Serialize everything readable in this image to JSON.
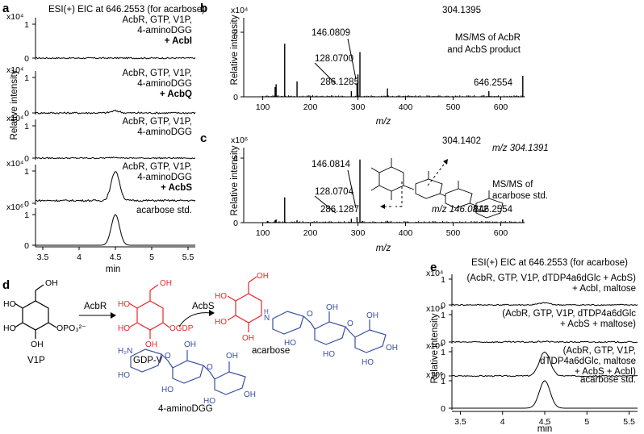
{
  "panels": {
    "a": "a",
    "b": "b",
    "c": "c",
    "d": "d",
    "e": "e"
  },
  "panel_a": {
    "title": "ESI(+) EIC at 646.2553 (for acarbose)",
    "ylabel": "Relative intensity",
    "xlabel": "min",
    "xticks": [
      "3.5",
      "4",
      "4.5",
      "5",
      "5.5"
    ],
    "traces": [
      {
        "scale": "x10⁴",
        "ytop": "1",
        "ybot": "0",
        "lines": [
          "AcbR, GTP, V1P,",
          "4-aminoDGG"
        ],
        "bold": "+ AcbI",
        "peak": 0.0,
        "noise": 0.04
      },
      {
        "scale": "x10⁴",
        "ytop": "1",
        "ybot": "0",
        "lines": [
          "AcbR, GTP, V1P,",
          "4-aminoDGG"
        ],
        "bold": "+ AcbQ",
        "peak": 0.06,
        "noise": 0.05
      },
      {
        "scale": "x10⁴",
        "ytop": "1",
        "ybot": "0",
        "lines": [
          "AcbR, GTP, V1P,",
          "4-aminoDGG"
        ],
        "bold": "",
        "peak": 0.03,
        "noise": 0.04
      },
      {
        "scale": "x10⁴",
        "ytop": "1",
        "ybot": "0",
        "lines": [
          "AcbR, GTP, V1P,",
          "4-aminoDGG"
        ],
        "bold": "+ AcbS",
        "peak": 1.0,
        "noise": 0.06,
        "baseline": 0.08
      },
      {
        "scale": "x10⁶",
        "ytop": "1",
        "ybot": "0",
        "lines": [
          "acarbose std."
        ],
        "bold": "",
        "peak": 1.0,
        "noise": 0.0
      }
    ]
  },
  "panel_b": {
    "scale": "x10⁴",
    "yticks": [
      "2",
      "0"
    ],
    "ylabel": "Relative intensity",
    "xlabel": "m/z",
    "xticks": [
      "100",
      "200",
      "300",
      "400",
      "500",
      "600"
    ],
    "annotation": [
      "MS/MS of AcbR",
      "and AcbS product"
    ],
    "labels": [
      "146.0809",
      "128.0700",
      "286.1285",
      "304.1395",
      "646.2554"
    ]
  },
  "panel_c": {
    "scale": "x10⁶",
    "yticks": [
      "4",
      "0"
    ],
    "ylabel": "Relative intensity",
    "xlabel": "m/z",
    "xticks": [
      "100",
      "200",
      "300",
      "400",
      "500",
      "600"
    ],
    "annotation": [
      "MS/MS of",
      "acarbose std."
    ],
    "labels": [
      "146.0814",
      "128.0704",
      "286.1287",
      "304.1402",
      "646.2554"
    ],
    "frag_labels": [
      "m/z 304.1391",
      "m/z 146.0812"
    ]
  },
  "panel_d": {
    "V1P": "V1P",
    "GDPV": "GDP-V",
    "AcbR": "AcbR",
    "AcbS": "AcbS",
    "acarbose": "acarbose",
    "aminoDGG": "4-aminoDGG",
    "OPO3": "OPO₃²⁻",
    "OGDP": "OGDP"
  },
  "panel_e": {
    "title": "ESI(+) EIC at 646.2553 (for acarbose)",
    "ylabel": "Relative intensity",
    "xlabel": "min",
    "xticks": [
      "3.5",
      "4",
      "4.5",
      "5",
      "5.5"
    ],
    "traces": [
      {
        "scale": "x10⁴",
        "ytop": "1",
        "ybot": "0",
        "line1": "(AcbR, GTP, V1P, dTDP4a6dGlc + AcbS)",
        "line2": "+ AcbI, maltose"
      },
      {
        "scale": "x10⁴",
        "ytop": "1",
        "ybot": "0",
        "line1": "(AcbR, GTP, V1P, dTDP4a6dGlc",
        "line2": "+ AcbS + maltose)"
      },
      {
        "scale": "x10⁴",
        "ytop": "1",
        "ybot": "0",
        "line1": "(AcbR, GTP, V1P,",
        "line2": "dTDP4a6dGlc, maltose",
        "line3": "+ AcbS + AcbI)"
      },
      {
        "scale": "x10⁶",
        "ytop": "1",
        "ybot": "0",
        "line1": "acarbose std."
      }
    ]
  },
  "chart_data": [
    {
      "type": "line",
      "title": "ESI(+) EIC at 646.2553 (for acarbose)",
      "xlabel": "min",
      "ylabel": "Relative intensity",
      "xlim": [
        3.4,
        5.6
      ],
      "series": [
        {
          "name": "AcbR, GTP, V1P, 4-aminoDGG + AcbI",
          "peak_x": 4.5,
          "peak_height": 0.0,
          "scale": "x10^4"
        },
        {
          "name": "AcbR, GTP, V1P, 4-aminoDGG + AcbQ",
          "peak_x": 4.5,
          "peak_height": 0.06,
          "scale": "x10^4"
        },
        {
          "name": "AcbR, GTP, V1P, 4-aminoDGG",
          "peak_x": 4.5,
          "peak_height": 0.03,
          "scale": "x10^4"
        },
        {
          "name": "AcbR, GTP, V1P, 4-aminoDGG + AcbS",
          "peak_x": 4.5,
          "peak_height": 1.0,
          "scale": "x10^4"
        },
        {
          "name": "acarbose std.",
          "peak_x": 4.5,
          "peak_height": 1.0,
          "scale": "x10^6"
        }
      ]
    },
    {
      "type": "bar",
      "title": "MS/MS of AcbR and AcbS product",
      "xlabel": "m/z",
      "ylabel": "Relative intensity",
      "xlim": [
        60,
        650
      ],
      "ylim": [
        0,
        2.6
      ],
      "scale": "x10^4",
      "x": [
        126,
        128.07,
        146.08,
        172,
        286.13,
        298,
        300,
        304.14,
        362,
        575,
        646.26
      ],
      "values": [
        0.35,
        0.45,
        1.9,
        0.55,
        0.2,
        0.5,
        0.8,
        1.6,
        0.3,
        0.2,
        0.75
      ]
    },
    {
      "type": "bar",
      "title": "MS/MS of acarbose std.",
      "xlabel": "m/z",
      "ylabel": "Relative intensity",
      "xlim": [
        60,
        650
      ],
      "ylim": [
        0,
        4.6
      ],
      "scale": "x10^6",
      "x": [
        110,
        126,
        128.07,
        146.08,
        172,
        286.13,
        298,
        304.14,
        310,
        362,
        646.26
      ],
      "values": [
        0.1,
        0.15,
        0.2,
        1.6,
        0.15,
        0.25,
        0.35,
        4.0,
        0.1,
        0.12,
        0.2
      ]
    },
    {
      "type": "line",
      "title": "ESI(+) EIC at 646.2553 (for acarbose)",
      "xlabel": "min",
      "ylabel": "Relative intensity",
      "xlim": [
        3.4,
        5.6
      ],
      "series": [
        {
          "name": "(AcbR, GTP, V1P, dTDP4a6dGlc + AcbS) + AcbI, maltose",
          "peak_x": 4.5,
          "peak_height": 0.08,
          "scale": "x10^4"
        },
        {
          "name": "(AcbR, GTP, V1P, dTDP4a6dGlc + AcbS + maltose)",
          "peak_x": 4.5,
          "peak_height": 0.02,
          "scale": "x10^4"
        },
        {
          "name": "(AcbR, GTP, V1P, dTDP4a6dGlc, maltose + AcbS + AcbI)",
          "peak_x": 4.5,
          "peak_height": 1.0,
          "scale": "x10^4"
        },
        {
          "name": "acarbose std.",
          "peak_x": 4.5,
          "peak_height": 1.0,
          "scale": "x10^6"
        }
      ]
    }
  ]
}
